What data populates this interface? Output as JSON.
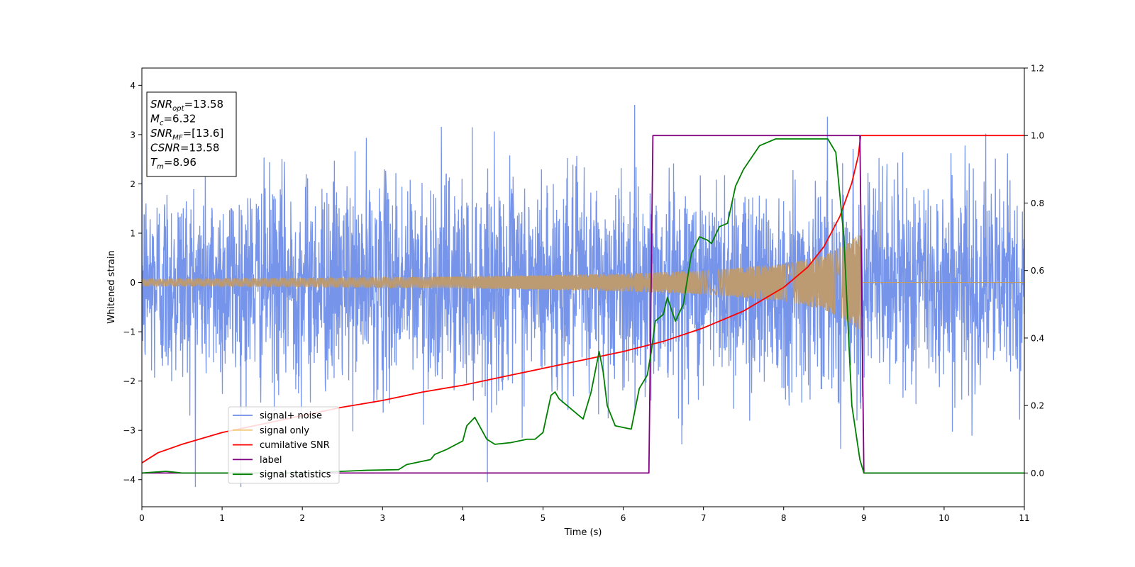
{
  "chart_data": {
    "type": "line",
    "xlabel": "Time (s)",
    "ylabel": "Whitened strain",
    "xlim": [
      0,
      11
    ],
    "ylim": [
      -4.55,
      4.35
    ],
    "y2lim": [
      -0.1,
      1.2
    ],
    "x_ticks": [
      0,
      1,
      2,
      3,
      4,
      5,
      6,
      7,
      8,
      9,
      10,
      11
    ],
    "y_ticks": [
      -4,
      -3,
      -2,
      -1,
      0,
      1,
      2,
      3,
      4
    ],
    "y2_ticks": [
      0.0,
      0.2,
      0.4,
      0.6,
      0.8,
      1.0,
      1.2
    ],
    "grid": false,
    "legend_position": "bottom-left",
    "annotation": {
      "lines": [
        {
          "var": "SNR",
          "sub": "opt",
          "value": "=13.58"
        },
        {
          "var": "M",
          "sub": "c",
          "value": "=6.32"
        },
        {
          "var": "SNR",
          "sub": "MF",
          "value": "=[13.6]"
        },
        {
          "var": "CSNR",
          "sub": "",
          "value": "=13.58"
        },
        {
          "var": "T",
          "sub": "m",
          "value": "=8.96"
        }
      ]
    },
    "series": [
      {
        "name": "signal+ noise",
        "color": "#6f8ee8",
        "axis": "left",
        "kind": "noise",
        "description_values": {
          "std": 1.05,
          "min": -4.15,
          "max": 3.95
        }
      },
      {
        "name": "signal only",
        "color": "#f4c87a",
        "axis": "left",
        "kind": "chirp",
        "envelope": {
          "x": [
            0,
            2,
            4,
            6,
            7,
            8,
            8.5,
            8.8,
            8.96
          ],
          "amp": [
            0.07,
            0.09,
            0.12,
            0.18,
            0.24,
            0.38,
            0.55,
            0.8,
            1.0
          ]
        },
        "flat_after": 8.96
      },
      {
        "name": "cumilative SNR",
        "color": "#ff0000",
        "axis": "right",
        "x": [
          0,
          0.2,
          0.5,
          1,
          1.5,
          2,
          2.5,
          3,
          3.5,
          4,
          4.5,
          5,
          5.5,
          6,
          6.5,
          7,
          7.5,
          8,
          8.3,
          8.5,
          8.7,
          8.85,
          8.93,
          8.96,
          11
        ],
        "y": [
          0.03,
          0.06,
          0.085,
          0.12,
          0.145,
          0.17,
          0.195,
          0.215,
          0.24,
          0.26,
          0.285,
          0.31,
          0.335,
          0.36,
          0.39,
          0.43,
          0.48,
          0.55,
          0.61,
          0.67,
          0.76,
          0.86,
          0.94,
          1.0,
          1.0
        ]
      },
      {
        "name": "label",
        "color": "#800080",
        "axis": "right",
        "x": [
          0,
          6.32,
          6.37,
          8.95,
          9.0,
          11
        ],
        "y": [
          0,
          0,
          1,
          1,
          0,
          0
        ]
      },
      {
        "name": "signal statistics",
        "color": "#008000",
        "axis": "right",
        "x": [
          0,
          0.3,
          0.5,
          1,
          2,
          2.8,
          3.2,
          3.3,
          3.6,
          3.65,
          3.8,
          4.0,
          4.05,
          4.15,
          4.3,
          4.4,
          4.6,
          4.8,
          4.9,
          5.0,
          5.1,
          5.15,
          5.2,
          5.3,
          5.4,
          5.5,
          5.6,
          5.7,
          5.75,
          5.8,
          5.9,
          6.1,
          6.2,
          6.3,
          6.35,
          6.4,
          6.5,
          6.55,
          6.65,
          6.75,
          6.85,
          6.95,
          7.05,
          7.1,
          7.2,
          7.3,
          7.4,
          7.5,
          7.7,
          7.9,
          8.0,
          8.2,
          8.4,
          8.55,
          8.65,
          8.75,
          8.85,
          8.95,
          9.0,
          11
        ],
        "y": [
          0,
          0.005,
          0,
          0,
          0,
          0.008,
          0.01,
          0.025,
          0.04,
          0.055,
          0.07,
          0.095,
          0.14,
          0.165,
          0.1,
          0.085,
          0.09,
          0.1,
          0.1,
          0.12,
          0.23,
          0.24,
          0.22,
          0.2,
          0.18,
          0.16,
          0.24,
          0.36,
          0.3,
          0.2,
          0.14,
          0.13,
          0.25,
          0.29,
          0.36,
          0.45,
          0.47,
          0.52,
          0.45,
          0.5,
          0.65,
          0.7,
          0.69,
          0.68,
          0.73,
          0.74,
          0.85,
          0.9,
          0.97,
          0.99,
          0.99,
          0.99,
          0.99,
          0.99,
          0.95,
          0.7,
          0.2,
          0.04,
          0.0,
          0.0
        ]
      }
    ]
  }
}
